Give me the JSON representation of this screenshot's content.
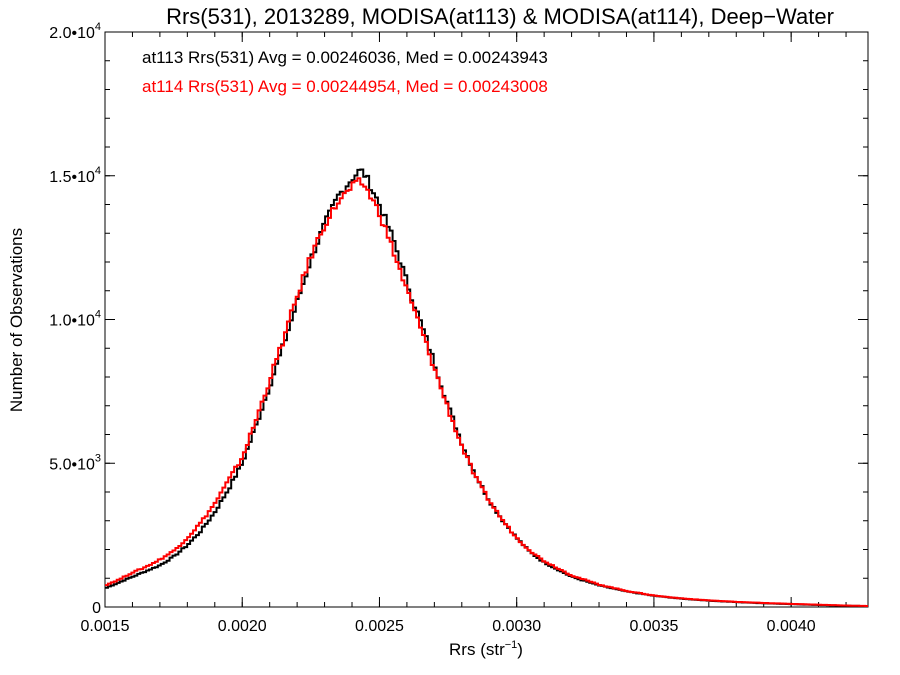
{
  "chart_data": {
    "type": "line",
    "title": "Rrs(531), 2013289, MODISA(at113) & MODISA(at114), Deep−Water",
    "xlabel": "Rrs (str",
    "xlabel_sup": "−1",
    "xlabel_close": ")",
    "ylabel": "Number of Observations",
    "xlim": [
      0.0015,
      0.00428
    ],
    "ylim": [
      0,
      20000
    ],
    "x_ticks": [
      {
        "value": 0.0015,
        "label": "0.0015"
      },
      {
        "value": 0.002,
        "label": "0.0020"
      },
      {
        "value": 0.0025,
        "label": "0.0025"
      },
      {
        "value": 0.003,
        "label": "0.0030"
      },
      {
        "value": 0.0035,
        "label": "0.0035"
      },
      {
        "value": 0.004,
        "label": "0.0040"
      }
    ],
    "y_ticks": [
      {
        "value": 0,
        "base": "0",
        "exp": ""
      },
      {
        "value": 5000,
        "base": "5.0•10",
        "exp": "3"
      },
      {
        "value": 10000,
        "base": "1.0•10",
        "exp": "4"
      },
      {
        "value": 15000,
        "base": "1.5•10",
        "exp": "4"
      },
      {
        "value": 20000,
        "base": "2.0•10",
        "exp": "4"
      }
    ],
    "legend_position": "top-left",
    "series": [
      {
        "name": "at113",
        "color": "#000000",
        "annotation": "at113 Rrs(531) Avg = 0.00246036, Med = 0.00243943",
        "x": [
          0.0015,
          0.00155,
          0.0016,
          0.00165,
          0.0017,
          0.00175,
          0.0018,
          0.00185,
          0.0019,
          0.00195,
          0.002,
          0.00205,
          0.0021,
          0.00215,
          0.0022,
          0.00225,
          0.0023,
          0.00235,
          0.0024,
          0.00243,
          0.00245,
          0.0025,
          0.00255,
          0.0026,
          0.00265,
          0.0027,
          0.00275,
          0.0028,
          0.00285,
          0.0029,
          0.00295,
          0.003,
          0.00305,
          0.0031,
          0.0032,
          0.0033,
          0.0034,
          0.0035,
          0.0036,
          0.0037,
          0.0038,
          0.0039,
          0.004,
          0.0041,
          0.0042,
          0.00428
        ],
        "y": [
          650,
          850,
          1050,
          1250,
          1450,
          1750,
          2150,
          2650,
          3300,
          4100,
          5000,
          6300,
          7700,
          9100,
          10600,
          12100,
          13300,
          14300,
          14900,
          15200,
          15000,
          14000,
          12800,
          11300,
          9900,
          8500,
          7000,
          5700,
          4600,
          3700,
          3000,
          2400,
          1900,
          1550,
          1050,
          750,
          540,
          390,
          290,
          220,
          170,
          130,
          100,
          70,
          45,
          30
        ]
      },
      {
        "name": "at114",
        "color": "#ff0000",
        "annotation": "at114 Rrs(531) Avg = 0.00244954, Med = 0.00243008",
        "x": [
          0.0015,
          0.00155,
          0.0016,
          0.00165,
          0.0017,
          0.00175,
          0.0018,
          0.00185,
          0.0019,
          0.00195,
          0.002,
          0.00205,
          0.0021,
          0.00215,
          0.0022,
          0.00225,
          0.0023,
          0.00235,
          0.0024,
          0.00243,
          0.00245,
          0.0025,
          0.00255,
          0.0026,
          0.00265,
          0.0027,
          0.00275,
          0.0028,
          0.00285,
          0.0029,
          0.00295,
          0.003,
          0.00305,
          0.0031,
          0.0032,
          0.0033,
          0.0034,
          0.0035,
          0.0036,
          0.0037,
          0.0038,
          0.0039,
          0.004,
          0.0041,
          0.0042,
          0.00428
        ],
        "y": [
          750,
          950,
          1200,
          1400,
          1650,
          1950,
          2400,
          2950,
          3600,
          4400,
          5200,
          6500,
          7900,
          9300,
          10800,
          12200,
          13300,
          14100,
          14600,
          14800,
          14600,
          13700,
          12400,
          11000,
          9700,
          8300,
          6900,
          5600,
          4500,
          3700,
          3000,
          2400,
          1950,
          1600,
          1100,
          780,
          560,
          400,
          300,
          230,
          180,
          140,
          110,
          80,
          50,
          35
        ]
      }
    ]
  }
}
